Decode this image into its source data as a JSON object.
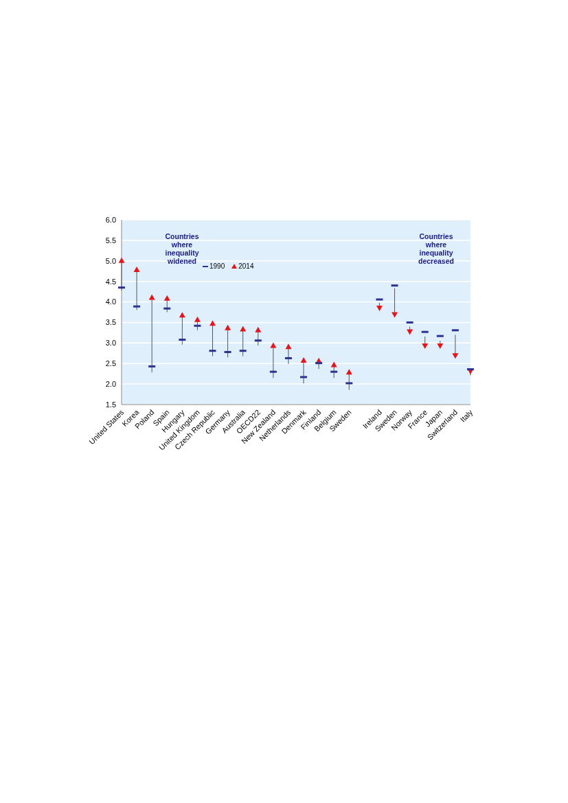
{
  "chart_data": {
    "type": "scatter",
    "categories": [
      "United States",
      "Korea",
      "Poland",
      "Spain",
      "Hungary",
      "United Kingdom",
      "Czech Republic",
      "Germany",
      "Australia",
      "OECD22",
      "New Zealand",
      "Netherlands",
      "Denmark",
      "Finland",
      "Belgium",
      "Sweden",
      null,
      "Ireland",
      "Sweden",
      "Norway",
      "France",
      "Japan",
      "Switzerland",
      "Italy"
    ],
    "series": [
      {
        "name": "1990",
        "color": "#2e3192",
        "marker": "square",
        "values": [
          4.35,
          3.89,
          2.43,
          3.84,
          3.08,
          3.42,
          2.81,
          2.78,
          2.81,
          3.06,
          2.3,
          2.63,
          2.17,
          2.51,
          2.3,
          2.02,
          null,
          4.06,
          4.4,
          3.5,
          3.27,
          3.17,
          3.31,
          2.36
        ]
      },
      {
        "name": "2014",
        "color": "#e8141b",
        "marker": "triangle",
        "values": [
          5.0,
          4.78,
          4.1,
          4.08,
          3.67,
          3.56,
          3.47,
          3.36,
          3.33,
          3.31,
          2.93,
          2.9,
          2.57,
          2.56,
          2.46,
          2.28,
          null,
          3.86,
          3.7,
          3.28,
          2.94,
          2.94,
          2.7,
          2.32
        ]
      }
    ],
    "ylim": [
      1.5,
      6.0
    ],
    "yticks": [
      1.5,
      {
        "value": 2,
        "label": "2.0"
      },
      2.5,
      {
        "value": 3,
        "label": "3.0"
      },
      3.5,
      {
        "value": 4,
        "label": "4.0"
      },
      4.5,
      {
        "value": 5,
        "label": "5.0"
      },
      5.5,
      {
        "value": 6,
        "label": "6.0"
      }
    ],
    "grid": "y",
    "legend": "top",
    "annotations": [
      "Countries where inequality widened",
      "Countries where inequality decreased"
    ]
  }
}
